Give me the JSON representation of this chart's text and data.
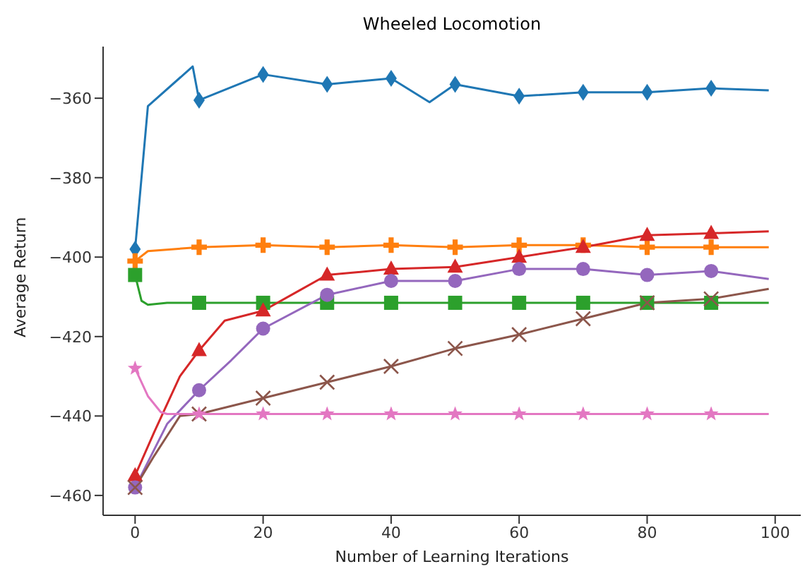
{
  "chart_data": {
    "type": "line",
    "title": "Wheeled Locomotion",
    "xlabel": "Number of Learning Iterations",
    "ylabel": "Average Return",
    "xlim": [
      -5,
      104
    ],
    "ylim": [
      -465,
      -347
    ],
    "xticks": [
      0,
      20,
      40,
      60,
      80,
      100
    ],
    "yticks": [
      -460,
      -440,
      -420,
      -400,
      -380,
      -360
    ],
    "grid": false,
    "legend": false,
    "series": [
      {
        "color": "#1f77b4",
        "marker": "diamond",
        "x": [
          0,
          2,
          9,
          10,
          20,
          30,
          40,
          46,
          50,
          60,
          70,
          80,
          90,
          99
        ],
        "values": [
          -398,
          -362,
          -352,
          -360.5,
          -354,
          -356.5,
          -355,
          -361,
          -356.5,
          -359.5,
          -358.5,
          -358.5,
          -357.5,
          -358
        ]
      },
      {
        "color": "#ff7f0e",
        "marker": "plus",
        "x": [
          0,
          2,
          10,
          20,
          30,
          40,
          50,
          60,
          70,
          80,
          90,
          99
        ],
        "values": [
          -401,
          -398.5,
          -397.5,
          -397,
          -397.5,
          -397,
          -397.5,
          -397,
          -397,
          -397.5,
          -397.5,
          -397.5
        ]
      },
      {
        "color": "#2ca02c",
        "marker": "square",
        "x": [
          0,
          1,
          2,
          5,
          10,
          20,
          30,
          40,
          50,
          60,
          70,
          80,
          90,
          99
        ],
        "values": [
          -404.5,
          -411,
          -412,
          -411.5,
          -411.5,
          -411.5,
          -411.5,
          -411.5,
          -411.5,
          -411.5,
          -411.5,
          -411.5,
          -411.5,
          -411.5
        ]
      },
      {
        "color": "#d62728",
        "marker": "triangle",
        "x": [
          0,
          3,
          7,
          10,
          14,
          20,
          25,
          30,
          40,
          50,
          60,
          70,
          80,
          90,
          99
        ],
        "values": [
          -455,
          -444,
          -430,
          -423.5,
          -416,
          -413.5,
          -409,
          -404.5,
          -403,
          -402.5,
          -400,
          -397.5,
          -394.5,
          -394,
          -393.5
        ]
      },
      {
        "color": "#9467bd",
        "marker": "circle",
        "x": [
          0,
          5,
          10,
          15,
          20,
          30,
          40,
          50,
          60,
          70,
          80,
          90,
          99
        ],
        "values": [
          -458,
          -442,
          -433.5,
          -426,
          -418,
          -409.5,
          -406,
          -406,
          -403,
          -403,
          -404.5,
          -403.5,
          -405.5
        ]
      },
      {
        "color": "#8c564b",
        "marker": "cross",
        "x": [
          0,
          3,
          5,
          7,
          10,
          20,
          30,
          40,
          50,
          60,
          70,
          80,
          90,
          99
        ],
        "values": [
          -458,
          -450,
          -445,
          -440,
          -439.5,
          -435.5,
          -431.5,
          -427.5,
          -423,
          -419.5,
          -415.5,
          -411.5,
          -410.5,
          -408
        ]
      },
      {
        "color": "#e377c2",
        "marker": "star",
        "x": [
          0,
          2,
          4,
          5,
          10,
          20,
          30,
          40,
          50,
          60,
          70,
          80,
          90,
          99
        ],
        "values": [
          -428,
          -435,
          -439,
          -439.5,
          -439.5,
          -439.5,
          -439.5,
          -439.5,
          -439.5,
          -439.5,
          -439.5,
          -439.5,
          -439.5,
          -439.5
        ]
      }
    ]
  }
}
